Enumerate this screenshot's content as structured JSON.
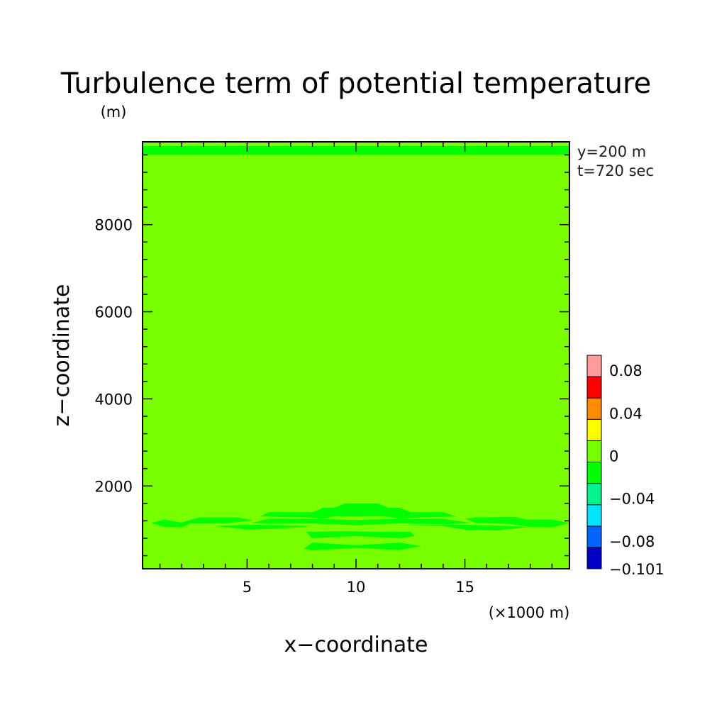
{
  "chart_data": {
    "type": "heatmap",
    "title": "Turbulence term of potential temperature",
    "xlabel": "x−coordinate",
    "ylabel": "z−coordinate",
    "x_unit": "(×1000 m)",
    "y_unit": "(m)",
    "annotations": [
      "y=200 m",
      "t=720 sec"
    ],
    "xlim": [
      0.2,
      19.8
    ],
    "ylim": [
      100,
      9900
    ],
    "x_ticks": [
      5,
      10,
      15
    ],
    "y_ticks": [
      2000,
      4000,
      6000,
      8000
    ],
    "background_level": "0 to 0.02",
    "colorbar": {
      "levels": [
        -0.101,
        -0.1,
        -0.08,
        -0.06,
        -0.04,
        -0.02,
        0,
        0.02,
        0.04,
        0.06,
        0.08,
        0.1
      ],
      "colors": [
        "#0000c8",
        "#0064ff",
        "#00e6ff",
        "#00f58c",
        "#00ff00",
        "#78ff00",
        "#ffff00",
        "#ff8c00",
        "#ff0000",
        "#ff9b9b"
      ],
      "labels": [
        {
          "text": "0.08",
          "value": 0.08
        },
        {
          "text": "0.04",
          "value": 0.04
        },
        {
          "text": "0",
          "value": 0
        },
        {
          "text": "−0.04",
          "value": -0.04
        },
        {
          "text": "−0.08",
          "value": -0.08
        },
        {
          "text": "−0.101",
          "value": -0.101
        }
      ]
    },
    "regions": [
      {
        "level": "-0.02 to 0",
        "color": "#00ff00",
        "points": [
          [
            0.2,
            9800
          ],
          [
            19.8,
            9800
          ],
          [
            19.8,
            9600
          ],
          [
            0.2,
            9600
          ]
        ]
      },
      {
        "level": "-0.02 to 0",
        "color": "#00ff00",
        "points": [
          [
            0.6,
            1150
          ],
          [
            1.2,
            1230
          ],
          [
            2.0,
            1160
          ],
          [
            2.8,
            1280
          ],
          [
            4.5,
            1280
          ],
          [
            5.3,
            1210
          ],
          [
            4.0,
            1140
          ],
          [
            2.4,
            1140
          ],
          [
            2.0,
            1050
          ],
          [
            1.2,
            1060
          ]
        ]
      },
      {
        "level": "-0.02 to 0",
        "color": "#00ff00",
        "points": [
          [
            3.5,
            1080
          ],
          [
            5.0,
            1000
          ],
          [
            6.5,
            1020
          ],
          [
            8.0,
            1080
          ],
          [
            6.5,
            1100
          ],
          [
            5.0,
            1110
          ]
        ]
      },
      {
        "level": "-0.02 to 0",
        "color": "#00ff00",
        "points": [
          [
            5.6,
            1300
          ],
          [
            6.0,
            1400
          ],
          [
            8.0,
            1400
          ],
          [
            8.5,
            1500
          ],
          [
            9.0,
            1500
          ],
          [
            9.5,
            1600
          ],
          [
            11.0,
            1600
          ],
          [
            11.5,
            1500
          ],
          [
            12.0,
            1500
          ],
          [
            12.5,
            1400
          ],
          [
            14.0,
            1400
          ],
          [
            14.6,
            1300
          ],
          [
            13.0,
            1280
          ],
          [
            12.0,
            1250
          ],
          [
            11.3,
            1300
          ],
          [
            9.0,
            1300
          ],
          [
            8.5,
            1250
          ],
          [
            7.5,
            1280
          ]
        ]
      },
      {
        "level": "-0.02 to 0",
        "color": "#00ff00",
        "points": [
          [
            5.2,
            1150
          ],
          [
            6.0,
            1250
          ],
          [
            8.0,
            1250
          ],
          [
            10.0,
            1220
          ],
          [
            12.0,
            1250
          ],
          [
            14.0,
            1250
          ],
          [
            15.3,
            1150
          ],
          [
            14.0,
            1120
          ],
          [
            12.0,
            1140
          ],
          [
            10.0,
            1100
          ],
          [
            8.0,
            1140
          ],
          [
            6.0,
            1130
          ]
        ]
      },
      {
        "level": "-0.02 to 0",
        "color": "#00ff00",
        "points": [
          [
            12.0,
            1100
          ],
          [
            14.0,
            1080
          ],
          [
            15.0,
            1000
          ],
          [
            16.5,
            980
          ],
          [
            18.0,
            1060
          ],
          [
            16.0,
            1100
          ],
          [
            14.5,
            1110
          ]
        ]
      },
      {
        "level": "-0.02 to 0",
        "color": "#00ff00",
        "points": [
          [
            15.0,
            1250
          ],
          [
            15.5,
            1280
          ],
          [
            17.3,
            1290
          ],
          [
            17.8,
            1230
          ],
          [
            19.0,
            1230
          ],
          [
            19.8,
            1150
          ],
          [
            19.0,
            1050
          ],
          [
            18.0,
            1060
          ],
          [
            17.0,
            1130
          ],
          [
            15.5,
            1150
          ]
        ]
      },
      {
        "level": "-0.02 to 0",
        "color": "#00ff00",
        "points": [
          [
            7.7,
            950
          ],
          [
            8.0,
            800
          ],
          [
            10.0,
            850
          ],
          [
            12.0,
            800
          ],
          [
            12.7,
            850
          ],
          [
            12.5,
            950
          ],
          [
            11.0,
            950
          ],
          [
            9.5,
            960
          ]
        ]
      },
      {
        "level": "-0.02 to 0",
        "color": "#00ff00",
        "points": [
          [
            7.6,
            560
          ],
          [
            8.0,
            700
          ],
          [
            10.0,
            640
          ],
          [
            12.0,
            700
          ],
          [
            13.0,
            620
          ],
          [
            12.0,
            530
          ],
          [
            10.0,
            580
          ],
          [
            8.0,
            520
          ]
        ]
      }
    ]
  }
}
